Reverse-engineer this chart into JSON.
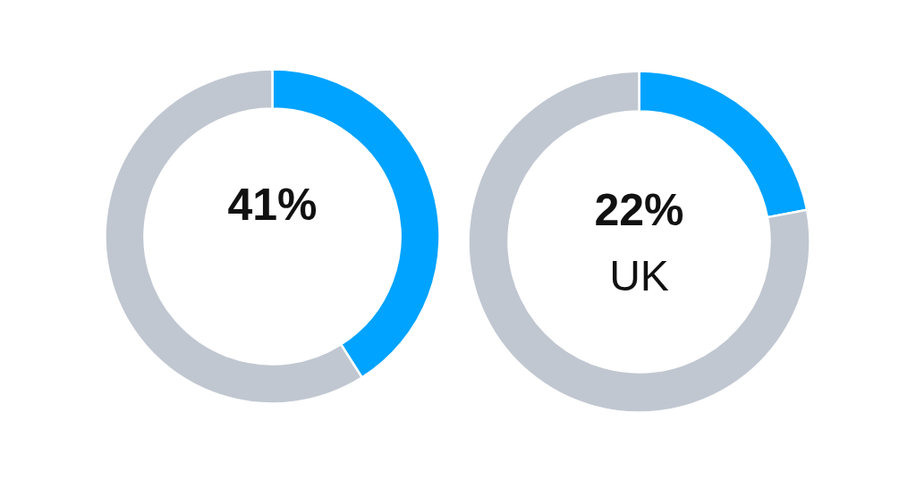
{
  "chart_data": [
    {
      "type": "donut",
      "categories": [
        null,
        null
      ],
      "values": [
        41,
        59
      ],
      "colors": [
        "#00a3ff",
        "#c1c7d1"
      ],
      "value_labels": [
        "41%",
        null
      ]
    },
    {
      "type": "donut",
      "categories": [
        "UK",
        null
      ],
      "values": [
        22,
        78
      ],
      "colors": [
        "#00a3ff",
        "#c1c7d1"
      ],
      "value_labels": [
        "22%",
        null
      ]
    }
  ]
}
